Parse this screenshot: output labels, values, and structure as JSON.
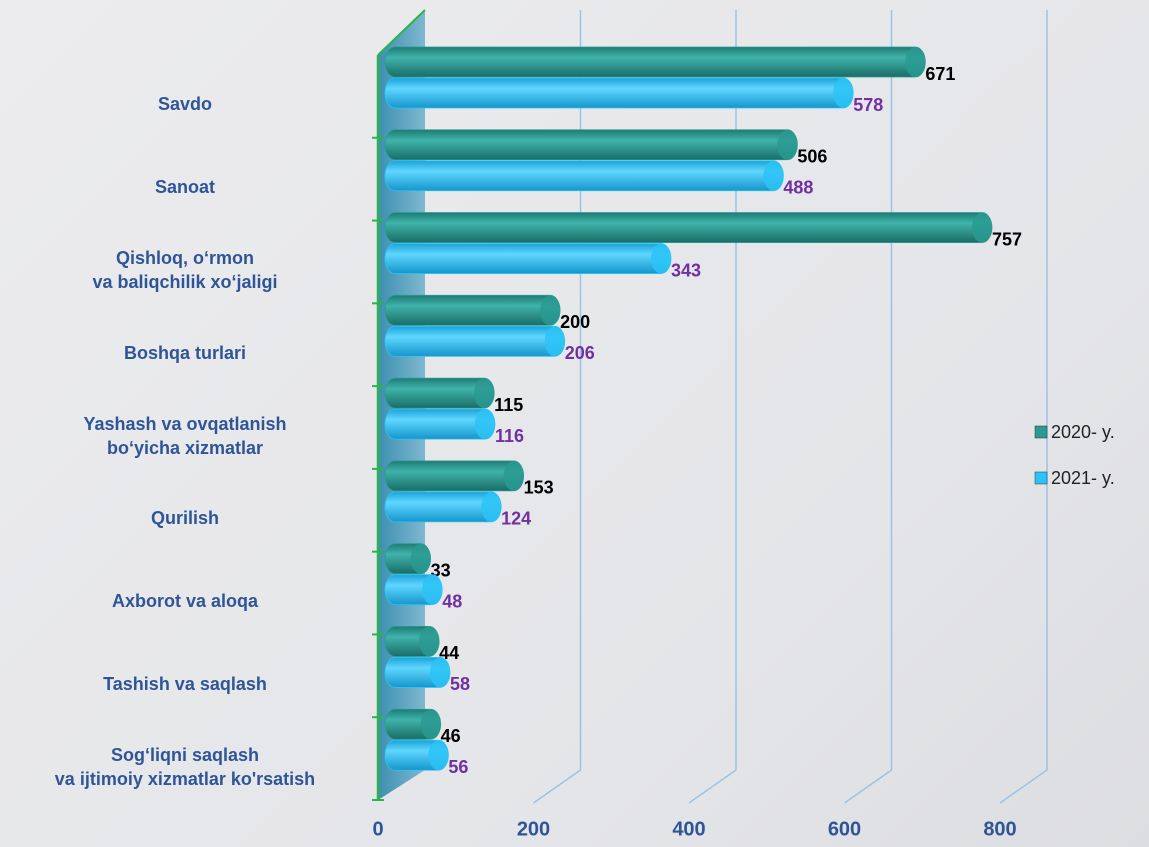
{
  "chart_data": {
    "type": "bar",
    "orientation": "horizontal",
    "categories": [
      "Savdo",
      "Sanoat",
      "Qishloq, o‘rmon\nva baliqchilik xo‘jaligi",
      "Boshqa turlari",
      "Yashash va ovqatlanish\nbo‘yicha xizmatlar",
      "Qurilish",
      "Axborot va aloqa",
      "Tashish va saqlash",
      "Sog‘liqni saqlash\nva ijtimoiy xizmatlar ko'rsatish"
    ],
    "series": [
      {
        "name": "2020- y.",
        "color": "#2a9a92",
        "label_color": "#000000",
        "values": [
          671,
          506,
          757,
          200,
          115,
          153,
          33,
          44,
          46
        ]
      },
      {
        "name": "2021- y.",
        "color": "#2cc3f7",
        "label_color": "#7030a0",
        "values": [
          578,
          488,
          343,
          206,
          116,
          124,
          48,
          58,
          56
        ]
      }
    ],
    "xlim": [
      0,
      800
    ],
    "xticks": [
      0,
      200,
      400,
      600,
      800
    ],
    "grid": true,
    "legend": "right"
  }
}
